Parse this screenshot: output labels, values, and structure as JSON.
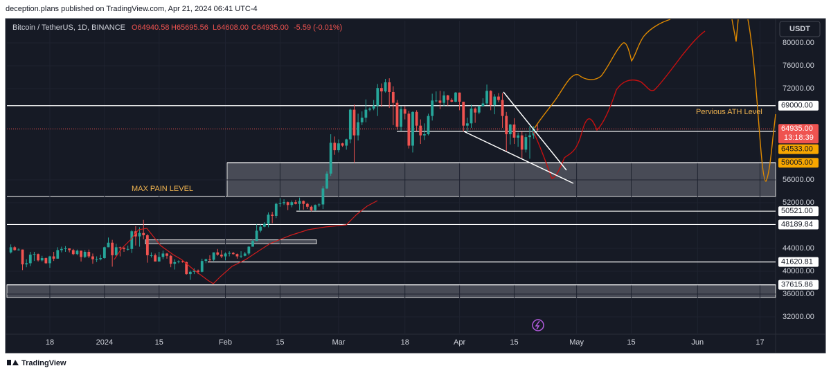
{
  "header": {
    "text": "deception.plans published on TradingView.com, Apr 21, 2024 06:41 UTC-4"
  },
  "legend": {
    "symbol": "Bitcoin / TetherUS, 1D, BINANCE",
    "ohlc": [
      "O64940.58",
      "H65695.56",
      "L64608.00",
      "C64935.00",
      "-5.59 (-0.01%)"
    ]
  },
  "currency": "USDT",
  "footer": "TradingView",
  "chart_data": {
    "type": "candlestick",
    "up_color": "#26a69a",
    "down_color": "#ef5350",
    "x": [
      "2023-12-08",
      "2023-12-09",
      "2023-12-10",
      "2023-12-11",
      "2023-12-12",
      "2023-12-13",
      "2023-12-14",
      "2023-12-15",
      "2023-12-16",
      "2023-12-17",
      "2023-12-18",
      "2023-12-19",
      "2023-12-20",
      "2023-12-21",
      "2023-12-22",
      "2023-12-23",
      "2023-12-24",
      "2023-12-25",
      "2023-12-26",
      "2023-12-27",
      "2023-12-28",
      "2023-12-29",
      "2023-12-30",
      "2023-12-31",
      "2024-01-01",
      "2024-01-02",
      "2024-01-03",
      "2024-01-04",
      "2024-01-05",
      "2024-01-06",
      "2024-01-07",
      "2024-01-08",
      "2024-01-09",
      "2024-01-10",
      "2024-01-11",
      "2024-01-12",
      "2024-01-13",
      "2024-01-14",
      "2024-01-15",
      "2024-01-16",
      "2024-01-17",
      "2024-01-18",
      "2024-01-19",
      "2024-01-20",
      "2024-01-21",
      "2024-01-22",
      "2024-01-23",
      "2024-01-24",
      "2024-01-25",
      "2024-01-26",
      "2024-01-27",
      "2024-01-28",
      "2024-01-29",
      "2024-01-30",
      "2024-01-31",
      "2024-02-01",
      "2024-02-02",
      "2024-02-03",
      "2024-02-04",
      "2024-02-05",
      "2024-02-06",
      "2024-02-07",
      "2024-02-08",
      "2024-02-09",
      "2024-02-10",
      "2024-02-11",
      "2024-02-12",
      "2024-02-13",
      "2024-02-14",
      "2024-02-15",
      "2024-02-16",
      "2024-02-17",
      "2024-02-18",
      "2024-02-19",
      "2024-02-20",
      "2024-02-21",
      "2024-02-22",
      "2024-02-23",
      "2024-02-24",
      "2024-02-25",
      "2024-02-26",
      "2024-02-27",
      "2024-02-28",
      "2024-02-29",
      "2024-03-01",
      "2024-03-02",
      "2024-03-03",
      "2024-03-04",
      "2024-03-05",
      "2024-03-06",
      "2024-03-07",
      "2024-03-08",
      "2024-03-09",
      "2024-03-10",
      "2024-03-11",
      "2024-03-12",
      "2024-03-13",
      "2024-03-14",
      "2024-03-15",
      "2024-03-16",
      "2024-03-17",
      "2024-03-18",
      "2024-03-19",
      "2024-03-20",
      "2024-03-21",
      "2024-03-22",
      "2024-03-23",
      "2024-03-24",
      "2024-03-25",
      "2024-03-26",
      "2024-03-27",
      "2024-03-28",
      "2024-03-29",
      "2024-03-30",
      "2024-03-31",
      "2024-04-01",
      "2024-04-02",
      "2024-04-03",
      "2024-04-04",
      "2024-04-05",
      "2024-04-06",
      "2024-04-07",
      "2024-04-08",
      "2024-04-09",
      "2024-04-10",
      "2024-04-11",
      "2024-04-12",
      "2024-04-13",
      "2024-04-14",
      "2024-04-15",
      "2024-04-16",
      "2024-04-17",
      "2024-04-18",
      "2024-04-19",
      "2024-04-20",
      "2024-04-21"
    ],
    "candles": [
      [
        43300,
        44700,
        43100,
        44200
      ],
      [
        44200,
        44400,
        43600,
        43700
      ],
      [
        43700,
        44000,
        43600,
        43800
      ],
      [
        43800,
        43800,
        40200,
        41200
      ],
      [
        41200,
        42100,
        40700,
        41400
      ],
      [
        41400,
        43400,
        40900,
        42900
      ],
      [
        42900,
        43400,
        41800,
        43000
      ],
      [
        43000,
        43100,
        41700,
        41900
      ],
      [
        41900,
        42700,
        41700,
        42300
      ],
      [
        42300,
        42400,
        41300,
        41400
      ],
      [
        41400,
        42700,
        40600,
        42600
      ],
      [
        42600,
        43400,
        41800,
        42200
      ],
      [
        42200,
        44200,
        42200,
        43700
      ],
      [
        43700,
        44300,
        43300,
        43900
      ],
      [
        43900,
        44400,
        43400,
        44000
      ],
      [
        44000,
        44000,
        43300,
        43700
      ],
      [
        43700,
        43900,
        42800,
        43000
      ],
      [
        43000,
        43800,
        42800,
        43600
      ],
      [
        43600,
        43600,
        41700,
        42500
      ],
      [
        42500,
        43700,
        42300,
        43400
      ],
      [
        43400,
        43800,
        42300,
        42600
      ],
      [
        42600,
        43100,
        41300,
        42100
      ],
      [
        42100,
        42600,
        41600,
        42100
      ],
      [
        42100,
        42900,
        41900,
        42300
      ],
      [
        42300,
        44300,
        42200,
        44200
      ],
      [
        44200,
        45900,
        44200,
        45000
      ],
      [
        45000,
        45500,
        40800,
        42800
      ],
      [
        42800,
        44800,
        42700,
        44200
      ],
      [
        44200,
        44300,
        42600,
        44100
      ],
      [
        44100,
        44200,
        43400,
        43900
      ],
      [
        43900,
        44500,
        43600,
        43900
      ],
      [
        43900,
        47200,
        43200,
        47000
      ],
      [
        47000,
        47900,
        44500,
        46100
      ],
      [
        46100,
        47700,
        44300,
        46700
      ],
      [
        46700,
        49000,
        45600,
        46300
      ],
      [
        46300,
        46500,
        41500,
        42800
      ],
      [
        42800,
        43300,
        42400,
        42800
      ],
      [
        42800,
        43100,
        41700,
        41700
      ],
      [
        41700,
        43400,
        41700,
        42500
      ],
      [
        42500,
        43600,
        42100,
        43100
      ],
      [
        43100,
        43200,
        42200,
        42700
      ],
      [
        42700,
        42900,
        40700,
        41300
      ],
      [
        41300,
        42100,
        40300,
        41600
      ],
      [
        41600,
        41900,
        41400,
        41700
      ],
      [
        41700,
        41900,
        41500,
        41600
      ],
      [
        41600,
        41700,
        39400,
        39500
      ],
      [
        39500,
        40100,
        38500,
        39900
      ],
      [
        39900,
        40500,
        39500,
        40100
      ],
      [
        40100,
        40300,
        39500,
        39900
      ],
      [
        39900,
        42200,
        39800,
        41800
      ],
      [
        41800,
        42200,
        41400,
        42100
      ],
      [
        42100,
        42800,
        41600,
        42000
      ],
      [
        42000,
        43300,
        41800,
        43300
      ],
      [
        43300,
        43900,
        42700,
        42900
      ],
      [
        42900,
        43700,
        42300,
        42600
      ],
      [
        42600,
        43300,
        41900,
        43100
      ],
      [
        43100,
        43500,
        42600,
        43200
      ],
      [
        43200,
        43400,
        42900,
        43000
      ],
      [
        43000,
        43100,
        42200,
        42600
      ],
      [
        42600,
        43500,
        42300,
        42700
      ],
      [
        42700,
        43400,
        42600,
        43100
      ],
      [
        43100,
        44400,
        42800,
        44300
      ],
      [
        44300,
        45600,
        44300,
        45300
      ],
      [
        45300,
        48200,
        45300,
        47100
      ],
      [
        47100,
        48200,
        46800,
        47800
      ],
      [
        47800,
        48600,
        47700,
        48300
      ],
      [
        48300,
        50300,
        47700,
        49900
      ],
      [
        49900,
        50400,
        48400,
        49700
      ],
      [
        49700,
        52000,
        49300,
        51800
      ],
      [
        51800,
        52800,
        51300,
        51900
      ],
      [
        51900,
        52600,
        51600,
        52100
      ],
      [
        52100,
        52200,
        50700,
        51600
      ],
      [
        51600,
        52400,
        51200,
        52100
      ],
      [
        52100,
        52500,
        51700,
        51800
      ],
      [
        51800,
        52900,
        50700,
        52300
      ],
      [
        52300,
        52400,
        50800,
        51800
      ],
      [
        51800,
        52000,
        50900,
        51300
      ],
      [
        51300,
        51500,
        50500,
        50700
      ],
      [
        50700,
        51700,
        50600,
        51600
      ],
      [
        51600,
        51900,
        51300,
        51700
      ],
      [
        51700,
        54900,
        50900,
        54500
      ],
      [
        54500,
        57500,
        54400,
        57100
      ],
      [
        57100,
        64000,
        56700,
        62500
      ],
      [
        62500,
        63600,
        60400,
        61200
      ],
      [
        61200,
        63100,
        60800,
        62400
      ],
      [
        62400,
        62500,
        61800,
        62000
      ],
      [
        62000,
        63200,
        61300,
        63100
      ],
      [
        63100,
        68500,
        62400,
        68300
      ],
      [
        68300,
        69200,
        59000,
        63800
      ],
      [
        63800,
        67600,
        62900,
        66100
      ],
      [
        66100,
        68000,
        65600,
        66900
      ],
      [
        66900,
        70100,
        66100,
        68300
      ],
      [
        68300,
        68700,
        68000,
        68500
      ],
      [
        68500,
        70000,
        68200,
        69000
      ],
      [
        69000,
        72800,
        67200,
        72100
      ],
      [
        72100,
        72900,
        68800,
        71500
      ],
      [
        71500,
        73700,
        71300,
        73100
      ],
      [
        73100,
        73800,
        68600,
        71400
      ],
      [
        71400,
        72400,
        65600,
        69500
      ],
      [
        69500,
        70000,
        64800,
        65300
      ],
      [
        65300,
        68900,
        64600,
        68400
      ],
      [
        68400,
        68900,
        66600,
        67600
      ],
      [
        67600,
        68100,
        61500,
        62000
      ],
      [
        62000,
        68000,
        60800,
        67900
      ],
      [
        67900,
        68200,
        64600,
        65500
      ],
      [
        65500,
        66600,
        62300,
        63800
      ],
      [
        63800,
        65900,
        63000,
        64000
      ],
      [
        64000,
        67600,
        63800,
        67200
      ],
      [
        67200,
        71100,
        66400,
        69900
      ],
      [
        69900,
        71500,
        69600,
        69900
      ],
      [
        69900,
        71600,
        68400,
        69500
      ],
      [
        69500,
        71500,
        68900,
        70800
      ],
      [
        70800,
        70900,
        69000,
        70000
      ],
      [
        70000,
        70300,
        69600,
        69700
      ],
      [
        69700,
        71400,
        69600,
        71300
      ],
      [
        71300,
        71300,
        68200,
        69700
      ],
      [
        69700,
        69700,
        64500,
        65500
      ],
      [
        65500,
        66900,
        64500,
        65900
      ],
      [
        65900,
        69200,
        65100,
        68500
      ],
      [
        68500,
        68700,
        66000,
        67800
      ],
      [
        67800,
        69000,
        67500,
        68900
      ],
      [
        68900,
        70300,
        68800,
        69400
      ],
      [
        69400,
        72700,
        69100,
        71600
      ],
      [
        71600,
        71700,
        68200,
        69100
      ],
      [
        69100,
        71000,
        67500,
        70600
      ],
      [
        70600,
        71200,
        69600,
        70000
      ],
      [
        70000,
        71200,
        65100,
        67200
      ],
      [
        67200,
        67900,
        61000,
        64000
      ],
      [
        64000,
        65800,
        62200,
        65700
      ],
      [
        65700,
        66800,
        62300,
        63400
      ],
      [
        63400,
        64300,
        61800,
        63800
      ],
      [
        63800,
        64500,
        59800,
        61300
      ],
      [
        61300,
        64100,
        60800,
        63500
      ],
      [
        63500,
        65400,
        59700,
        63800
      ],
      [
        63800,
        65400,
        63200,
        64940
      ],
      [
        64940.58,
        65695.56,
        64608,
        64935
      ]
    ],
    "ylim": [
      28970,
      83880
    ],
    "yticks": [
      {
        "value": 80000,
        "label": "80000.00"
      },
      {
        "value": 76000,
        "label": "76000.00"
      },
      {
        "value": 72000,
        "label": "72000.00"
      },
      {
        "value": 56000,
        "label": "56000.00"
      },
      {
        "value": 52000,
        "label": "52000.00"
      },
      {
        "value": 44000,
        "label": "44000.00"
      },
      {
        "value": 40000,
        "label": "40000.00"
      },
      {
        "value": 36000,
        "label": "36000.00"
      },
      {
        "value": 32000,
        "label": "32000.00"
      }
    ],
    "xlim": [
      "2023-12-07",
      "2024-06-21"
    ],
    "xticks": [
      {
        "value": "2023-12-18",
        "label": "18"
      },
      {
        "value": "2024-01-01",
        "label": "2024"
      },
      {
        "value": "2024-01-15",
        "label": "15"
      },
      {
        "value": "2024-02-01",
        "label": "Feb"
      },
      {
        "value": "2024-02-15",
        "label": "15"
      },
      {
        "value": "2024-03-01",
        "label": "Mar"
      },
      {
        "value": "2024-03-18",
        "label": "18"
      },
      {
        "value": "2024-04-01",
        "label": "Apr"
      },
      {
        "value": "2024-04-15",
        "label": "15"
      },
      {
        "value": "2024-05-01",
        "label": "May"
      },
      {
        "value": "2024-05-15",
        "label": "15"
      },
      {
        "value": "2024-06-01",
        "label": "Jun"
      },
      {
        "value": "2024-06-17",
        "label": "17"
      }
    ],
    "levels": [
      {
        "value": 69000,
        "label": "69000.00",
        "color": "#ffffff"
      },
      {
        "value": 64533,
        "label": "64533.00",
        "color": "#f7a600"
      },
      {
        "value": 59005,
        "label": "59005.00",
        "color": "#f7a600"
      },
      {
        "value": 50521,
        "label": "50521.00",
        "color": "#ffffff"
      },
      {
        "value": 48189.84,
        "label": "48189.84",
        "color": "#ffffff"
      },
      {
        "value": 41620.81,
        "label": "41620.81",
        "color": "#ffffff"
      },
      {
        "value": 37615.86,
        "label": "37615.86",
        "color": "#ffffff"
      }
    ],
    "zones": [
      {
        "top": 59005,
        "bottom": 53100
      },
      {
        "top": 37615.86,
        "bottom": 35400
      },
      {
        "top": 45500,
        "bottom": 44800
      }
    ],
    "dashed_level": 56000,
    "last_price": {
      "value": 64935,
      "label": "64935.00",
      "countdown": "13:18:39",
      "color": "#ef5350"
    },
    "annotations": [
      "Pervious ATH Level",
      "MAX PAIN LEVEL"
    ]
  }
}
